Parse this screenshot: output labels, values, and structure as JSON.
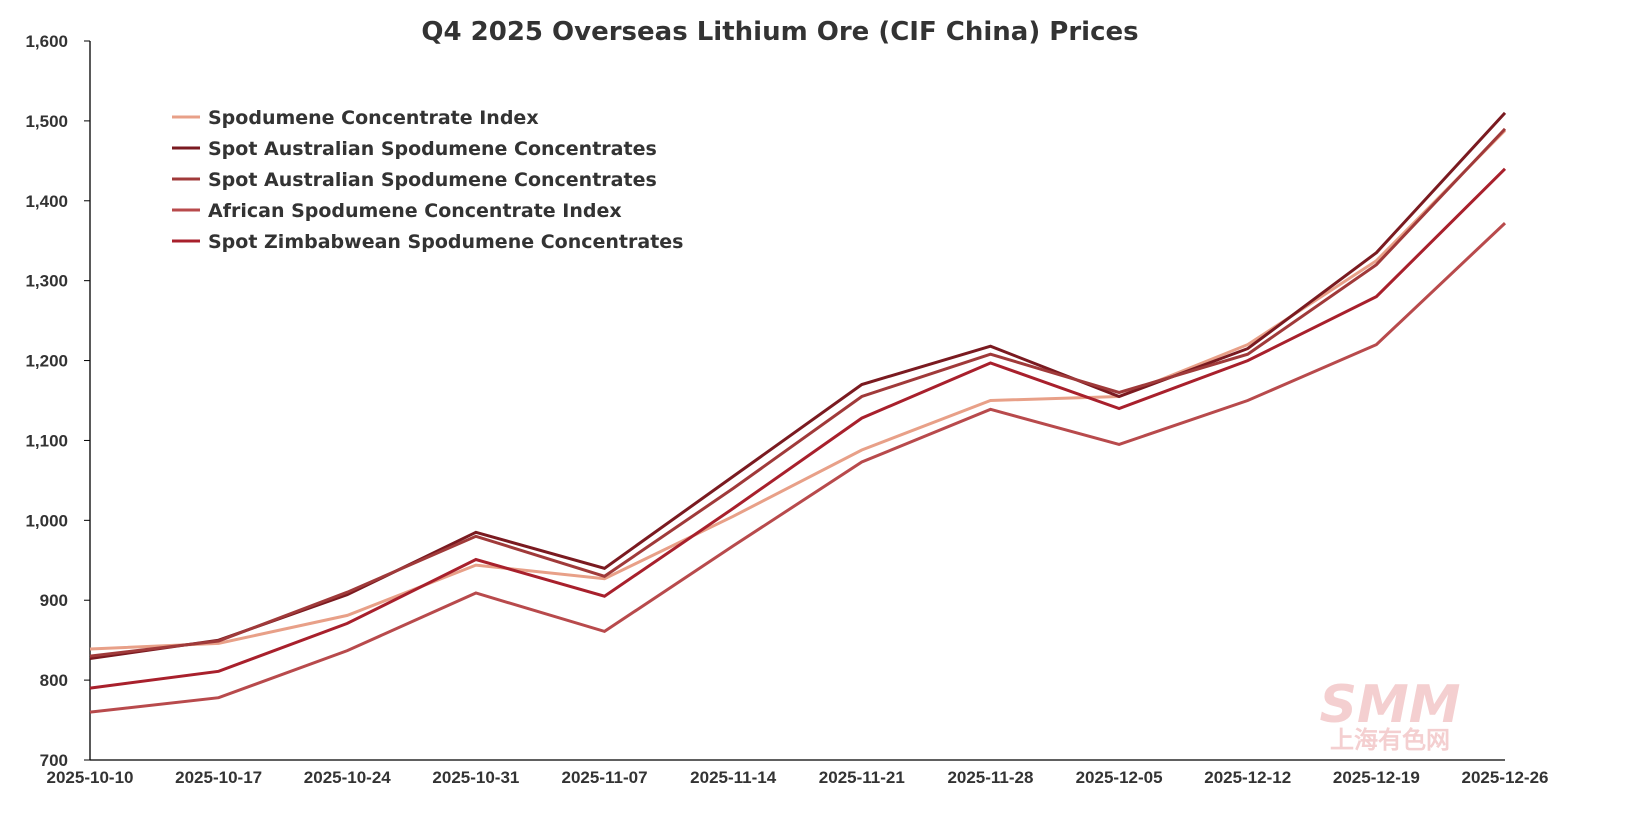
{
  "chart_data": {
    "type": "line",
    "title": "Q4 2025 Overseas Lithium Ore (CIF China) Prices",
    "xlabel": "",
    "ylabel": "",
    "ylim": [
      700,
      1600
    ],
    "yticks": [
      700,
      800,
      900,
      1000,
      1100,
      1200,
      1300,
      1400,
      1500,
      1600
    ],
    "ytick_labels": [
      "700",
      "800",
      "900",
      "1,000",
      "1,100",
      "1,200",
      "1,300",
      "1,400",
      "1,500",
      "1,600"
    ],
    "grid": false,
    "legend_position": "top-left",
    "x": [
      "2025-10-10",
      "2025-10-17",
      "2025-10-24",
      "2025-10-31",
      "2025-11-07",
      "2025-11-14",
      "2025-11-21",
      "2025-11-28",
      "2025-12-05",
      "2025-12-12",
      "2025-12-19",
      "2025-12-26"
    ],
    "series": [
      {
        "name": "Spodumene Concentrate Index",
        "color": "#e8a088",
        "values": [
          839,
          846,
          881,
          944,
          927,
          1005,
          1088,
          1150,
          1155,
          1220,
          1325,
          1488
        ]
      },
      {
        "name": "Spot Australian Spodumene Concentrates",
        "color": "#7a1a20",
        "values": [
          827,
          850,
          907,
          985,
          940,
          1055,
          1170,
          1218,
          1155,
          1215,
          1335,
          1510
        ]
      },
      {
        "name": "Spot Australian Spodumene Concentrates",
        "color": "#a03a3a",
        "values": [
          830,
          849,
          910,
          980,
          930,
          1040,
          1155,
          1208,
          1160,
          1208,
          1320,
          1490
        ]
      },
      {
        "name": "African Spodumene Concentrate Index",
        "color": "#b84a4c",
        "values": [
          760,
          778,
          837,
          909,
          861,
          968,
          1073,
          1139,
          1095,
          1150,
          1220,
          1372
        ]
      },
      {
        "name": "Spot Zimbabwean Spodumene Concentrates",
        "color": "#a8202c",
        "values": [
          790,
          811,
          871,
          951,
          905,
          1015,
          1128,
          1197,
          1140,
          1200,
          1280,
          1440
        ]
      }
    ]
  },
  "watermark": {
    "brand": "SMM",
    "subtitle": "上海有色网",
    "color": "#f4cfd0"
  }
}
